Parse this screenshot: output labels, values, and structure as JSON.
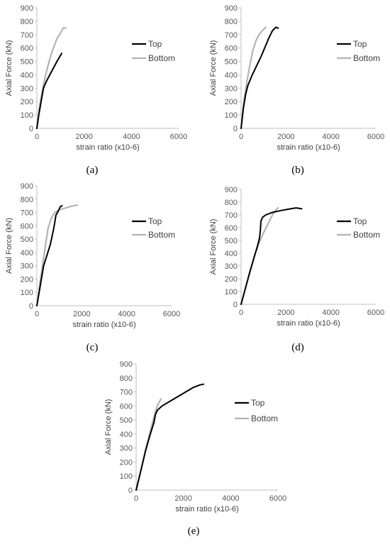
{
  "chart_data": [
    {
      "type": "line",
      "panel_label": "(a)",
      "xlabel": "strain ratio (x10-6)",
      "ylabel": "Axial Force (kN)",
      "xlim": [
        0,
        6000
      ],
      "ylim": [
        0,
        900
      ],
      "xticks": [
        0,
        2000,
        4000,
        6000
      ],
      "yticks": [
        0,
        100,
        200,
        300,
        400,
        500,
        600,
        700,
        800,
        900
      ],
      "grid": false,
      "legend": "right",
      "series": [
        {
          "name": "Top",
          "color": "#000000",
          "points": [
            [
              0,
              0
            ],
            [
              80,
              100
            ],
            [
              180,
              200
            ],
            [
              280,
              300
            ],
            [
              400,
              350
            ],
            [
              550,
              400
            ],
            [
              700,
              450
            ],
            [
              850,
              500
            ],
            [
              1050,
              560
            ]
          ]
        },
        {
          "name": "Bottom",
          "color": "#b3b3b3",
          "points": [
            [
              0,
              0
            ],
            [
              100,
              150
            ],
            [
              250,
              300
            ],
            [
              400,
              420
            ],
            [
              550,
              520
            ],
            [
              700,
              600
            ],
            [
              850,
              670
            ],
            [
              1000,
              710
            ],
            [
              1120,
              750
            ],
            [
              1220,
              750
            ]
          ]
        }
      ]
    },
    {
      "type": "line",
      "panel_label": "(b)",
      "xlabel": "strain ratio (x10-6)",
      "ylabel": "Axial Force (kN)",
      "xlim": [
        0,
        6000
      ],
      "ylim": [
        0,
        900
      ],
      "xticks": [
        0,
        2000,
        4000,
        6000
      ],
      "yticks": [
        0,
        100,
        200,
        300,
        400,
        500,
        600,
        700,
        800,
        900
      ],
      "grid": false,
      "legend": "right",
      "series": [
        {
          "name": "Top",
          "color": "#000000",
          "points": [
            [
              0,
              0
            ],
            [
              100,
              150
            ],
            [
              200,
              250
            ],
            [
              300,
              320
            ],
            [
              500,
              400
            ],
            [
              700,
              470
            ],
            [
              900,
              540
            ],
            [
              1100,
              620
            ],
            [
              1250,
              680
            ],
            [
              1400,
              730
            ],
            [
              1550,
              755
            ],
            [
              1650,
              748
            ]
          ]
        },
        {
          "name": "Bottom",
          "color": "#b3b3b3",
          "points": [
            [
              0,
              0
            ],
            [
              120,
              200
            ],
            [
              260,
              350
            ],
            [
              400,
              480
            ],
            [
              520,
              580
            ],
            [
              650,
              650
            ],
            [
              800,
              700
            ],
            [
              950,
              730
            ],
            [
              1100,
              755
            ]
          ]
        }
      ]
    },
    {
      "type": "line",
      "panel_label": "(c)",
      "xlabel": "strain ratio (x10-6)",
      "ylabel": "Axial Force (kN)",
      "xlim": [
        0,
        6000
      ],
      "ylim": [
        0,
        900
      ],
      "xticks": [
        0,
        2000,
        4000,
        6000
      ],
      "yticks": [
        0,
        100,
        200,
        300,
        400,
        500,
        600,
        700,
        800,
        900
      ],
      "grid": false,
      "legend": "right",
      "series": [
        {
          "name": "Top",
          "color": "#000000",
          "points": [
            [
              0,
              0
            ],
            [
              150,
              150
            ],
            [
              300,
              300
            ],
            [
              450,
              380
            ],
            [
              600,
              460
            ],
            [
              750,
              580
            ],
            [
              850,
              680
            ],
            [
              950,
              710
            ],
            [
              1050,
              745
            ],
            [
              1120,
              750
            ]
          ]
        },
        {
          "name": "Bottom",
          "color": "#b3b3b3",
          "points": [
            [
              0,
              0
            ],
            [
              120,
              150
            ],
            [
              250,
              300
            ],
            [
              380,
              450
            ],
            [
              500,
              580
            ],
            [
              650,
              660
            ],
            [
              800,
              700
            ],
            [
              1000,
              720
            ],
            [
              1300,
              735
            ],
            [
              1600,
              750
            ],
            [
              1800,
              755
            ]
          ]
        }
      ]
    },
    {
      "type": "line",
      "panel_label": "(d)",
      "xlabel": "strain ratio (x10-6)",
      "ylabel": "Axial Force (kN)",
      "xlim": [
        0,
        6000
      ],
      "ylim": [
        0,
        900
      ],
      "xticks": [
        0,
        2000,
        4000,
        6000
      ],
      "yticks": [
        0,
        100,
        200,
        300,
        400,
        500,
        600,
        700,
        800,
        900
      ],
      "grid": false,
      "legend": "right",
      "series": [
        {
          "name": "Top",
          "color": "#000000",
          "points": [
            [
              0,
              0
            ],
            [
              200,
              130
            ],
            [
              400,
              260
            ],
            [
              600,
              380
            ],
            [
              750,
              470
            ],
            [
              820,
              520
            ],
            [
              860,
              580
            ],
            [
              880,
              650
            ],
            [
              950,
              680
            ],
            [
              1100,
              700
            ],
            [
              1400,
              720
            ],
            [
              1800,
              735
            ],
            [
              2200,
              748
            ],
            [
              2450,
              755
            ],
            [
              2700,
              748
            ]
          ]
        },
        {
          "name": "Bottom",
          "color": "#b3b3b3",
          "points": [
            [
              0,
              0
            ],
            [
              200,
              130
            ],
            [
              400,
              260
            ],
            [
              600,
              380
            ],
            [
              800,
              480
            ],
            [
              1000,
              560
            ],
            [
              1200,
              630
            ],
            [
              1400,
              700
            ],
            [
              1550,
              740
            ],
            [
              1650,
              755
            ]
          ]
        }
      ]
    },
    {
      "type": "line",
      "panel_label": "(e)",
      "xlabel": "strain ratio (x10-6)",
      "ylabel": "Axial Force (kN)",
      "xlim": [
        0,
        6000
      ],
      "ylim": [
        0,
        900
      ],
      "xticks": [
        0,
        2000,
        4000,
        6000
      ],
      "yticks": [
        0,
        100,
        200,
        300,
        400,
        500,
        600,
        700,
        800,
        900
      ],
      "grid": false,
      "legend": "right",
      "series": [
        {
          "name": "Top",
          "color": "#000000",
          "points": [
            [
              0,
              0
            ],
            [
              200,
              140
            ],
            [
              400,
              280
            ],
            [
              600,
              400
            ],
            [
              750,
              480
            ],
            [
              820,
              540
            ],
            [
              900,
              570
            ],
            [
              1100,
              600
            ],
            [
              1500,
              640
            ],
            [
              2000,
              690
            ],
            [
              2400,
              730
            ],
            [
              2700,
              750
            ],
            [
              2850,
              755
            ]
          ]
        },
        {
          "name": "Bottom",
          "color": "#b3b3b3",
          "points": [
            [
              0,
              0
            ],
            [
              200,
              140
            ],
            [
              400,
              290
            ],
            [
              600,
              420
            ],
            [
              750,
              520
            ],
            [
              850,
              580
            ],
            [
              950,
              620
            ],
            [
              1050,
              650
            ]
          ]
        }
      ]
    }
  ]
}
